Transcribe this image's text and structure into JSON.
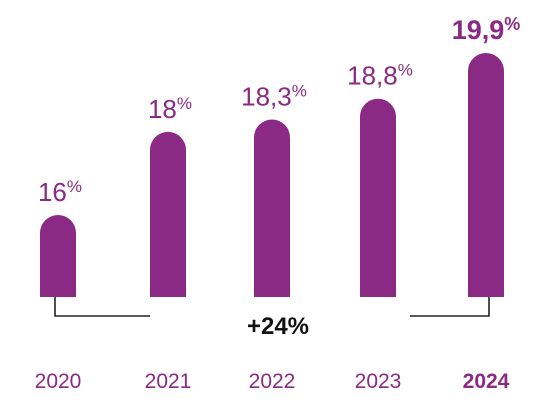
{
  "chart_data": {
    "type": "bar",
    "categories": [
      "2020",
      "2021",
      "2022",
      "2023",
      "2024"
    ],
    "values": [
      16,
      18,
      18.3,
      18.8,
      19.9
    ],
    "data_labels": [
      {
        "main": "16",
        "unit": "%"
      },
      {
        "main": "18",
        "unit": "%"
      },
      {
        "main": "18,3",
        "unit": "%"
      },
      {
        "main": "18,8",
        "unit": "%"
      },
      {
        "main": "19,9",
        "unit": "%"
      }
    ],
    "highlight_index": 4,
    "annotation": "+24%",
    "bar_color": "#8B2A84",
    "label_color": "#8B2A84",
    "axis_label_color": "#8B2A84",
    "bracket_color": "#222222",
    "title": "",
    "xlabel": "",
    "ylabel": ""
  }
}
